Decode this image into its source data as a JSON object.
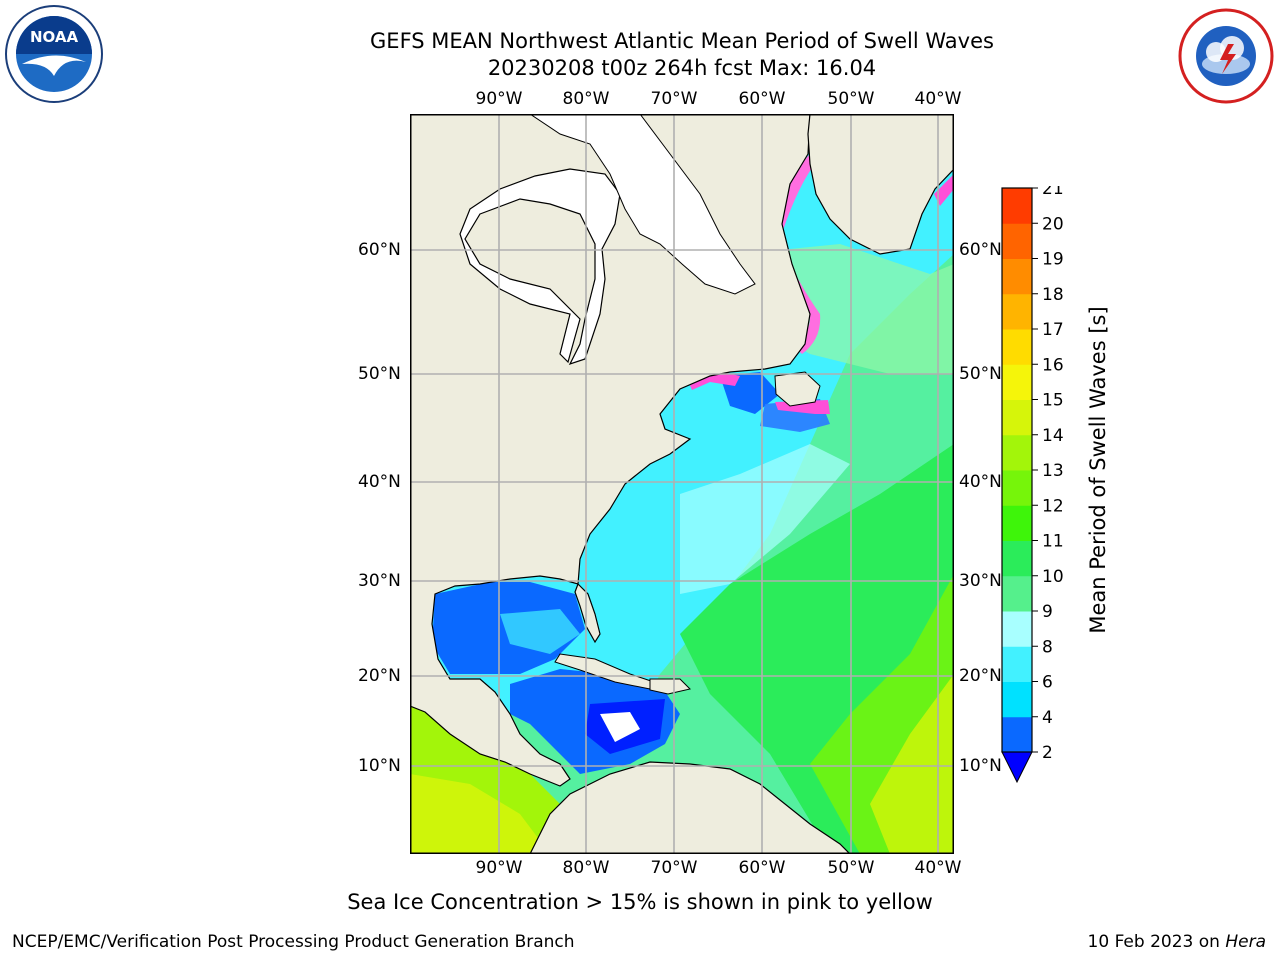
{
  "title": {
    "line1": "GEFS MEAN Northwest Atlantic Mean Period of Swell Waves",
    "line2": "20230208 t00z 264h fcst   Max: 16.04"
  },
  "map": {
    "lon_labels": [
      "90°W",
      "80°W",
      "70°W",
      "60°W",
      "50°W",
      "40°W"
    ],
    "lat_labels": [
      "60°N",
      "50°N",
      "40°N",
      "30°N",
      "20°N",
      "10°N"
    ],
    "land_color": "#eeedde",
    "ice_color": "#ffffff"
  },
  "colorbar": {
    "label": "Mean Period of Swell Waves [s]",
    "ticks": [
      "2",
      "4",
      "6",
      "8",
      "9",
      "10",
      "11",
      "12",
      "13",
      "14",
      "15",
      "16",
      "17",
      "18",
      "19",
      "20",
      "21"
    ],
    "colors": [
      "#0a69ff",
      "#00e1ff",
      "#42f1ff",
      "#a8ffff",
      "#55f08c",
      "#2bec5a",
      "#3ef50a",
      "#76f50a",
      "#a3f50a",
      "#d6f50a",
      "#f5f50a",
      "#ffdc00",
      "#ffb400",
      "#ff8c00",
      "#ff6400",
      "#ff3c00",
      "#ff0000"
    ]
  },
  "caption": "Sea Ice Concentration > 15% is shown in pink to yellow",
  "footer": {
    "left": "NCEP/EMC/Verification Post Processing Product Generation Branch",
    "right_date": "10 Feb 2023 on",
    "right_host": "Hera"
  },
  "logos": {
    "noaa_text": "NOAA",
    "noaa_ring_text": "NATIONAL OCEANIC AND ATMOSPHERIC ADMINISTRATION · U.S. DEPARTMENT OF COMMERCE",
    "nws_ring_text": "NATIONAL WEATHER SERVICE"
  }
}
